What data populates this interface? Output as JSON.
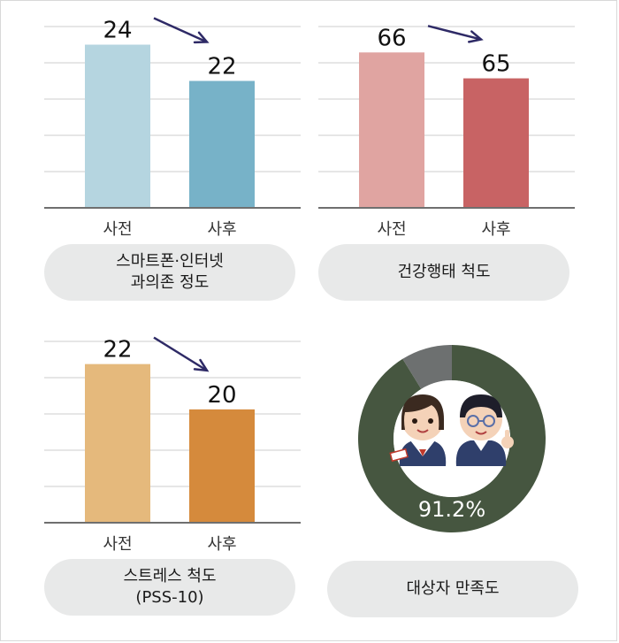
{
  "panels": [
    {
      "caption_lines": [
        "스마트폰·인터넷",
        "과의존 정도"
      ],
      "chart_data": {
        "type": "bar",
        "categories": [
          "사전",
          "사후"
        ],
        "values": [
          24,
          22
        ],
        "ylim": [
          15,
          25
        ],
        "grid": true,
        "colors": [
          "#b5d5e0",
          "#77b2c8"
        ]
      }
    },
    {
      "caption_lines": [
        "건강행태 척도"
      ],
      "chart_data": {
        "type": "bar",
        "categories": [
          "사전",
          "사후"
        ],
        "values": [
          66,
          65
        ],
        "ylim": [
          60,
          67
        ],
        "grid": true,
        "colors": [
          "#e0a4a1",
          "#c86364"
        ]
      }
    },
    {
      "caption_lines": [
        "스트레스 척도",
        "(PSS-10)"
      ],
      "chart_data": {
        "type": "bar",
        "categories": [
          "사전",
          "사후"
        ],
        "values": [
          22,
          20
        ],
        "ylim": [
          15,
          23
        ],
        "grid": true,
        "colors": [
          "#e5b97c",
          "#d58a3c"
        ]
      }
    },
    {
      "caption_lines": [
        "대상자 만족도"
      ],
      "chart_data": {
        "type": "pie",
        "donut": true,
        "value_label": "91.2%",
        "slices": [
          {
            "value": 91.2,
            "color": "#465640"
          },
          {
            "value": 8.8,
            "color": "#6d7070"
          }
        ]
      }
    }
  ],
  "colors": {
    "arrow": "#2e2a66",
    "gridline": "#cccccc",
    "axis": "#6f6f6f",
    "caption_bg": "#e8e9e9"
  }
}
